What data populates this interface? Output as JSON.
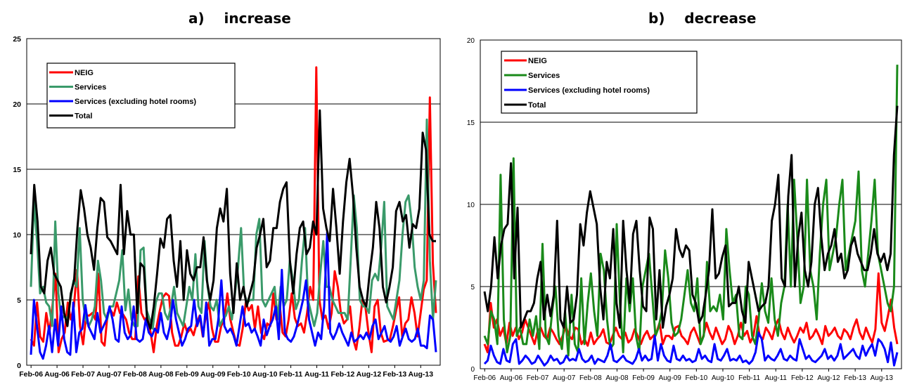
{
  "panels": [
    {
      "title": "a)    increase"
    },
    {
      "title": "b)    decrease"
    }
  ],
  "chart_data": [
    {
      "type": "line",
      "title": "a)    increase",
      "x_tick_labels": [
        "Feb-06",
        "Aug-06",
        "Feb-07",
        "Aug-07",
        "Feb-08",
        "Aug-08",
        "Feb-09",
        "Aug-09",
        "Feb-10",
        "Aug-10",
        "Feb-11",
        "Aug-11",
        "Feb-12",
        "Aug-12",
        "Feb-13",
        "Aug-13"
      ],
      "x_range": [
        "Jan-06",
        "Nov-13"
      ],
      "ylim": [
        0,
        25
      ],
      "yticks": [
        0,
        5,
        10,
        15,
        20,
        25
      ],
      "grid": "horizontal",
      "legend_position": "top-left",
      "series": [
        {
          "name": "NEIG",
          "color": "#ff0000",
          "values": [
            2,
            1.5,
            4.8,
            2.2,
            1.8,
            4,
            2.5,
            4.5,
            7,
            1,
            2,
            2.5,
            4.8,
            3.5,
            4.5,
            7.3,
            3,
            1.6,
            3.8,
            3.8,
            4,
            3.5,
            7,
            1.8,
            1.5,
            4,
            4.2,
            3.8,
            4.8,
            4,
            3.9,
            3.5,
            2.5,
            2,
            2,
            6.8,
            4,
            3.5,
            3.7,
            2.5,
            1,
            3,
            4.2,
            5.2,
            5.5,
            5.3,
            2.5,
            1.5,
            1.5,
            2.2,
            3.2,
            2.5,
            2.8,
            2.3,
            3.2,
            3.8,
            2.2,
            3.8,
            4.8,
            2.8,
            1.8,
            1.8,
            3,
            3.5,
            5.5,
            3.5,
            2.5,
            1.6,
            1.5,
            2.8,
            4.8,
            4.2,
            4.6,
            2.8,
            4.5,
            2.5,
            2,
            3.2,
            3,
            5.5,
            3.5,
            4.8,
            2.5,
            2.2,
            3.5,
            5.5,
            3.6,
            3,
            3.2,
            2.5,
            4,
            6,
            5,
            22.8,
            5,
            3.5,
            3.8,
            2.8,
            4,
            7.2,
            6,
            4,
            3.2,
            3.5,
            4.5,
            2,
            1.2,
            2.8,
            5,
            4.5,
            2.5,
            1,
            4.5,
            5,
            2.5,
            1.8,
            1.9,
            2,
            3,
            4.2,
            5.2,
            2.2,
            3.2,
            3.5,
            5.2,
            4,
            2.2,
            4,
            5.8,
            6.5,
            20.5,
            7.8,
            4
          ]
        },
        {
          "name": "Services",
          "color": "#3a9a6a",
          "values": [
            6,
            12.5,
            9.5,
            5.5,
            6,
            4.8,
            4.5,
            3,
            11,
            5.5,
            3.5,
            3.8,
            3.5,
            5,
            6.5,
            6,
            10.5,
            5,
            3.5,
            3,
            3.5,
            4.5,
            8,
            6.5,
            4,
            3.5,
            4.5,
            4.5,
            5.5,
            6.5,
            8.8,
            4.2,
            5.8,
            3.5,
            3,
            3,
            8.8,
            9,
            4.2,
            3.5,
            2.8,
            4.8,
            5.5,
            5.5,
            4,
            3.5,
            4.5,
            6,
            4,
            3.5,
            3,
            4.5,
            6,
            5,
            8.5,
            4.5,
            4,
            9.5,
            6,
            4.5,
            4.2,
            5,
            3,
            3.5,
            3.8,
            4.5,
            3.5,
            5.5,
            7.5,
            10.5,
            5.5,
            4.8,
            5,
            5,
            10,
            11.2,
            5,
            4.5,
            5,
            5.5,
            6,
            3.5,
            6,
            4.5,
            5,
            8,
            6.5,
            4.3,
            5,
            8,
            10.5,
            5,
            4,
            3,
            4,
            7,
            9.5,
            6,
            6,
            5,
            4.5,
            4,
            4,
            4,
            3.5,
            8,
            13,
            10.5,
            5,
            4.5,
            4.5,
            4,
            6.5,
            7,
            6.5,
            9,
            12.5,
            4.5,
            4,
            3.5,
            5,
            6.5,
            10,
            12.5,
            13,
            11,
            7.5,
            6,
            5,
            6.5,
            18.8,
            8,
            3.5,
            6.5
          ]
        },
        {
          "name": "Services (excluding hotel rooms)",
          "color": "#0000ff",
          "values": [
            0.8,
            5,
            3,
            1,
            0.5,
            1.5,
            3,
            1,
            3.5,
            1.5,
            4.5,
            2,
            1,
            0.8,
            4.8,
            1,
            2.5,
            2.8,
            4.6,
            3,
            2.5,
            2,
            4,
            2.5,
            3,
            3.5,
            4.5,
            3.5,
            2,
            1.8,
            4.5,
            2.5,
            2,
            2.3,
            4.5,
            2,
            1.8,
            2,
            3.5,
            2.5,
            2.2,
            2.8,
            2.5,
            4,
            2.5,
            2,
            3,
            5,
            3.5,
            2.5,
            1.5,
            2,
            2.8,
            3,
            5,
            3,
            3.8,
            2.2,
            4.8,
            1.5,
            2,
            2,
            3.5,
            6.5,
            3,
            2.5,
            2.8,
            2.3,
            1.5,
            3,
            4.5,
            3,
            3.2,
            2.5,
            2.8,
            2.2,
            1.5,
            3.5,
            2.3,
            3,
            3.5,
            4.5,
            2,
            7.3,
            2.5,
            2,
            1.8,
            2.2,
            3,
            4,
            5,
            6.5,
            3.5,
            2.5,
            1.5,
            2.5,
            2,
            4.5,
            10.2,
            2.5,
            2,
            2.5,
            3.2,
            2.5,
            2,
            1.5,
            2.5,
            1.8,
            2,
            2.3,
            2,
            2.5,
            2,
            3,
            3.5,
            2,
            2.5,
            3,
            2,
            1.8,
            2.2,
            3,
            1.5,
            2.2,
            2.8,
            2,
            1.8,
            2,
            2.8,
            1.5,
            1.5,
            1.3,
            3.8,
            3.5,
            1
          ]
        },
        {
          "name": "Total",
          "color": "#000000",
          "values": [
            8.5,
            13.8,
            11,
            6,
            5.5,
            8,
            9,
            7,
            6.5,
            6,
            4,
            3,
            5.5,
            6.5,
            10.5,
            13.4,
            12,
            10,
            9,
            7.3,
            10.5,
            12.8,
            12.5,
            9.8,
            9.5,
            9,
            8.5,
            13.8,
            8.5,
            11.8,
            10,
            10,
            4,
            7.8,
            7.5,
            3.5,
            2.8,
            4.5,
            7,
            9.7,
            9,
            11.2,
            11.5,
            8,
            6,
            9.5,
            5,
            8.8,
            7,
            6.5,
            7.5,
            7.5,
            9.8,
            6.5,
            5,
            6.5,
            10.5,
            12,
            11,
            13.5,
            7,
            4,
            7.8,
            5,
            6,
            4.5,
            5.5,
            6.5,
            9,
            10,
            11.2,
            7.5,
            8,
            10.5,
            10.5,
            12.5,
            13.5,
            14,
            8,
            5.5,
            8.5,
            10.5,
            11,
            8.5,
            9,
            11,
            10,
            19.5,
            12,
            10.5,
            9.5,
            13.5,
            10.5,
            7,
            11,
            14,
            15.8,
            13,
            9,
            6,
            5,
            4.5,
            7,
            9,
            12.5,
            10.5,
            6,
            4.8,
            6,
            7.5,
            11.8,
            12.5,
            11,
            11.5,
            9,
            10.8,
            10.5,
            12,
            17.8,
            16.5,
            10,
            9.5,
            9.5
          ]
        }
      ]
    },
    {
      "type": "line",
      "title": "b)    decrease",
      "x_tick_labels": [
        "Feb-06",
        "Aug-06",
        "Feb-07",
        "Aug-07",
        "Feb-08",
        "Aug-08",
        "Feb-09",
        "Aug-09",
        "Feb-10",
        "Aug-10",
        "Feb-11",
        "Aug-11",
        "Feb-12",
        "Aug-12",
        "Feb-13",
        "Aug-13"
      ],
      "x_range": [
        "Jan-06",
        "Nov-13"
      ],
      "ylim": [
        0,
        20
      ],
      "yticks": [
        0,
        5,
        10,
        15,
        20
      ],
      "grid": "horizontal",
      "legend_position": "top-left",
      "series": [
        {
          "name": "NEIG",
          "color": "#ff0000",
          "values": [
            1.5,
            1,
            4,
            2.5,
            3,
            2,
            2.5,
            1.5,
            2.8,
            2,
            2.5,
            1.8,
            2.2,
            3,
            2.5,
            2,
            1.5,
            2.3,
            2.5,
            2,
            1.8,
            2.5,
            2.2,
            1.8,
            1.5,
            2,
            2.6,
            2,
            1.8,
            2.5,
            2.4,
            1.5,
            1.8,
            1.4,
            2.2,
            1.5,
            1.8,
            2,
            2.4,
            1.6,
            1.5,
            2,
            2.5,
            2,
            1.8,
            2.2,
            1.6,
            1.8,
            2.4,
            2,
            1.5,
            2,
            2.3,
            1.8,
            2,
            2.2,
            2.8,
            1.5,
            2,
            2,
            1.8,
            2.5,
            2.6,
            2,
            1.8,
            1.5,
            2.2,
            2.5,
            2,
            1.5,
            2,
            2.8,
            2.2,
            1.8,
            2.5,
            2,
            1.5,
            1.8,
            2.6,
            2.2,
            1.5,
            2,
            2.8,
            2,
            2.3,
            1.6,
            2,
            3.2,
            2,
            1.8,
            2.5,
            2.2,
            1.8,
            2.6,
            3,
            2.2,
            1.8,
            2.5,
            2,
            1.6,
            2,
            2.5,
            2.2,
            2.8,
            1.8,
            2,
            2.4,
            2,
            1.5,
            2.6,
            2,
            2.2,
            2.5,
            2,
            1.8,
            2.4,
            2.2,
            1.8,
            2.5,
            3,
            2.2,
            1.8,
            2.5,
            2,
            1.6,
            2.4,
            5.8,
            2.8,
            2.3,
            3.2,
            4.2,
            2.5,
            1.5
          ]
        },
        {
          "name": "Services",
          "color": "#1a8a1a",
          "values": [
            2,
            1.5,
            3.5,
            3,
            1.5,
            11.8,
            3,
            1,
            2,
            12.8,
            2,
            2.5,
            1.5,
            1.5,
            3,
            2,
            3.2,
            1.2,
            7.6,
            2,
            1.5,
            3.5,
            5,
            2,
            1.2,
            3.5,
            0.8,
            4.5,
            1.5,
            1,
            5.5,
            1.5,
            4,
            5.8,
            3.5,
            2,
            7,
            6,
            3,
            1.2,
            1.5,
            8.8,
            4,
            1,
            5.5,
            3.5,
            5.5,
            2,
            1,
            5,
            6,
            7,
            4.5,
            2,
            2.5,
            3.5,
            7.2,
            5.5,
            2.8,
            2,
            2.2,
            3,
            4.5,
            6,
            4,
            3.5,
            5.5,
            1.5,
            2,
            6.5,
            3.5,
            3.8,
            3.5,
            4.5,
            3,
            8.5,
            6,
            4,
            4.5,
            2,
            1.8,
            5,
            4.5,
            2,
            1.5,
            3,
            5.2,
            3.5,
            2.8,
            5.5,
            3,
            2,
            4,
            5,
            10,
            5,
            11.5,
            8,
            4,
            5,
            11.5,
            6,
            5,
            3,
            7,
            10,
            11.5,
            6,
            7,
            8,
            10,
            11.5,
            6,
            7,
            8,
            9,
            12,
            6,
            5,
            7,
            9,
            11.5,
            7,
            6,
            5,
            4,
            3.5,
            5,
            18.5
          ]
        },
        {
          "name": "Services (excluding hotel rooms)",
          "color": "#0000ff",
          "values": [
            0.3,
            0.5,
            1.4,
            0.8,
            0.4,
            0.3,
            1.2,
            0.5,
            0.4,
            1.5,
            1.8,
            0.3,
            0.5,
            0.8,
            0.6,
            0.3,
            0.4,
            0.8,
            0.5,
            0.2,
            0.4,
            0.8,
            0.5,
            0.6,
            0.3,
            0.4,
            0.8,
            0.5,
            0.6,
            0.5,
            1.2,
            0.6,
            0.4,
            0.5,
            0.8,
            0.3,
            0.6,
            0.5,
            0.4,
            0.8,
            1.5,
            0.5,
            0.4,
            0.6,
            0.8,
            0.5,
            0.4,
            0.3,
            0.6,
            1.2,
            0.5,
            0.8,
            0.5,
            0.6,
            2,
            0.5,
            1.5,
            0.8,
            0.5,
            0.4,
            1.4,
            0.6,
            0.5,
            0.8,
            0.5,
            0.6,
            0.4,
            0.5,
            1.2,
            0.6,
            0.8,
            0.5,
            0.4,
            1.5,
            0.6,
            0.5,
            0.8,
            1.2,
            0.5,
            0.6,
            0.5,
            0.8,
            0.4,
            0.5,
            0.3,
            0.5,
            1,
            2.2,
            1.8,
            0.5,
            0.8,
            0.6,
            0.5,
            0.8,
            1.2,
            0.6,
            0.5,
            0.8,
            0.6,
            0.5,
            1.8,
            1.2,
            0.6,
            0.8,
            0.5,
            0.4,
            0.6,
            0.8,
            1.2,
            0.6,
            0.8,
            0.5,
            0.8,
            1.5,
            0.6,
            0.8,
            1,
            1.2,
            0.8,
            0.6,
            1.4,
            0.8,
            1.2,
            1.5,
            0.8,
            1.8,
            1.6,
            1.2,
            0.4,
            1.6,
            0.2,
            1
          ]
        },
        {
          "name": "Total",
          "color": "#000000",
          "values": [
            4.7,
            3.5,
            5,
            8,
            5.5,
            7.5,
            8.5,
            8.8,
            12.5,
            5.5,
            9.8,
            2.5,
            3,
            3.5,
            3.5,
            4,
            5.5,
            6.5,
            3,
            4.5,
            3.2,
            4.5,
            9,
            3,
            2.5,
            5,
            2.8,
            3,
            4.5,
            8.8,
            7.5,
            9.5,
            10.8,
            9.8,
            8.8,
            5,
            3,
            6.5,
            5.5,
            8.5,
            4,
            2.5,
            9,
            6,
            4,
            8.2,
            9,
            6,
            3.8,
            3.5,
            9.2,
            8.5,
            3,
            6,
            2.5,
            3.8,
            4.5,
            5.5,
            8.5,
            7.3,
            6.8,
            7.5,
            7.2,
            4.5,
            4,
            2.8,
            3.2,
            4.5,
            6,
            9.7,
            5.5,
            5.8,
            6.8,
            7.5,
            3.8,
            4,
            4,
            5,
            3.5,
            2.8,
            6.5,
            5.5,
            4.5,
            3.5,
            3.8,
            4,
            5,
            9,
            10,
            11.8,
            5.5,
            5,
            10.5,
            13,
            5,
            8,
            9.5,
            6,
            5,
            6.5,
            10,
            11,
            8,
            6,
            7,
            7.5,
            8.5,
            6.5,
            7,
            5.5,
            6,
            7.5,
            8,
            7,
            6.5,
            6,
            6,
            7,
            8.5,
            7,
            6.5,
            7,
            6,
            7,
            13,
            16
          ]
        }
      ]
    }
  ]
}
